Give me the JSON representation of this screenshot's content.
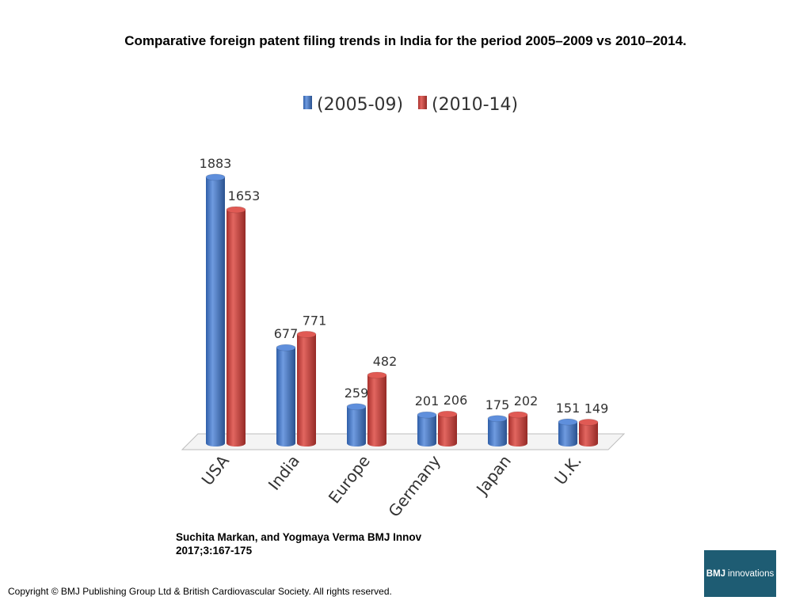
{
  "title": "Comparative foreign patent filing trends in India for the period 2005–2009 vs 2010–2014.",
  "citation": {
    "line1": "Suchita Markan, and Yogmaya Verma BMJ Innov",
    "line2": "2017;3:167-175"
  },
  "copyright": "Copyright © BMJ Publishing Group Ltd & British Cardiovascular Society. All rights reserved.",
  "logo": {
    "brand": "BMJ",
    "text": "innovations"
  },
  "colors": {
    "series1": "#4a7bc8",
    "series2": "#d04540"
  },
  "chart_data": {
    "type": "bar",
    "categories": [
      "USA",
      "India",
      "Europe",
      "Germany",
      "Japan",
      "U.K."
    ],
    "series": [
      {
        "name": "(2005-09)",
        "values": [
          1883,
          677,
          259,
          201,
          175,
          151
        ]
      },
      {
        "name": "(2010-14)",
        "values": [
          1653,
          771,
          482,
          206,
          202,
          149
        ]
      }
    ],
    "legend_position": "top",
    "grid": false,
    "style": "3d-cylinder"
  }
}
